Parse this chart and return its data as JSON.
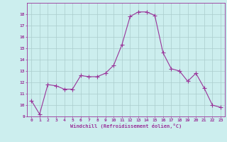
{
  "x": [
    0,
    1,
    2,
    3,
    4,
    5,
    6,
    7,
    8,
    9,
    10,
    11,
    12,
    13,
    14,
    15,
    16,
    17,
    18,
    19,
    20,
    21,
    22,
    23
  ],
  "y": [
    10.4,
    9.2,
    11.8,
    11.7,
    11.4,
    11.4,
    12.6,
    12.5,
    12.5,
    12.8,
    13.5,
    15.3,
    17.8,
    18.2,
    18.2,
    17.9,
    14.6,
    13.2,
    13.0,
    12.1,
    12.8,
    11.5,
    10.0,
    9.8
  ],
  "line_color": "#993399",
  "marker": "+",
  "marker_size": 4,
  "bg_color": "#cceeee",
  "grid_color": "#aacccc",
  "tick_color": "#993399",
  "label_color": "#993399",
  "xlabel": "Windchill (Refroidissement éolien,°C)",
  "ylim": [
    9,
    19
  ],
  "xlim": [
    -0.5,
    23.5
  ],
  "yticks": [
    9,
    10,
    11,
    12,
    13,
    14,
    15,
    16,
    17,
    18
  ],
  "xticks": [
    0,
    1,
    2,
    3,
    4,
    5,
    6,
    7,
    8,
    9,
    10,
    11,
    12,
    13,
    14,
    15,
    16,
    17,
    18,
    19,
    20,
    21,
    22,
    23
  ]
}
